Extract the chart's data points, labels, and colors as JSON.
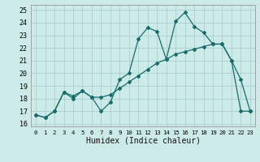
{
  "xlabel": "Humidex (Indice chaleur)",
  "bg_color": "#cceae8",
  "grid_color": "#add4d2",
  "line_color": "#1a6b6b",
  "xlim": [
    -0.5,
    23.5
  ],
  "ylim": [
    15.8,
    25.4
  ],
  "xticks": [
    0,
    1,
    2,
    3,
    4,
    5,
    6,
    7,
    8,
    9,
    10,
    11,
    12,
    13,
    14,
    15,
    16,
    17,
    18,
    19,
    20,
    21,
    22,
    23
  ],
  "yticks": [
    16,
    17,
    18,
    19,
    20,
    21,
    22,
    23,
    24,
    25
  ],
  "series1_x": [
    0,
    1,
    2,
    3,
    4,
    5,
    6,
    7,
    8,
    9,
    10,
    11,
    12,
    13,
    14,
    15,
    16,
    17,
    18,
    19,
    20,
    21,
    22,
    23
  ],
  "series1_y": [
    16.7,
    16.5,
    17.0,
    18.5,
    18.0,
    18.6,
    18.1,
    17.0,
    17.7,
    19.5,
    20.0,
    22.7,
    23.6,
    23.3,
    21.1,
    24.1,
    24.8,
    23.7,
    23.2,
    22.3,
    22.3,
    21.0,
    19.5,
    17.0
  ],
  "series2_x": [
    0,
    1,
    2,
    3,
    4,
    5,
    6,
    7,
    8,
    9,
    10,
    11,
    12,
    13,
    14,
    15,
    16,
    17,
    18,
    19,
    20,
    21,
    22,
    23
  ],
  "series2_y": [
    16.7,
    16.5,
    17.0,
    18.5,
    18.2,
    18.6,
    18.1,
    18.1,
    18.3,
    18.8,
    19.3,
    19.8,
    20.3,
    20.8,
    21.1,
    21.5,
    21.7,
    21.9,
    22.1,
    22.3,
    22.3,
    21.0,
    17.0,
    17.0
  ]
}
